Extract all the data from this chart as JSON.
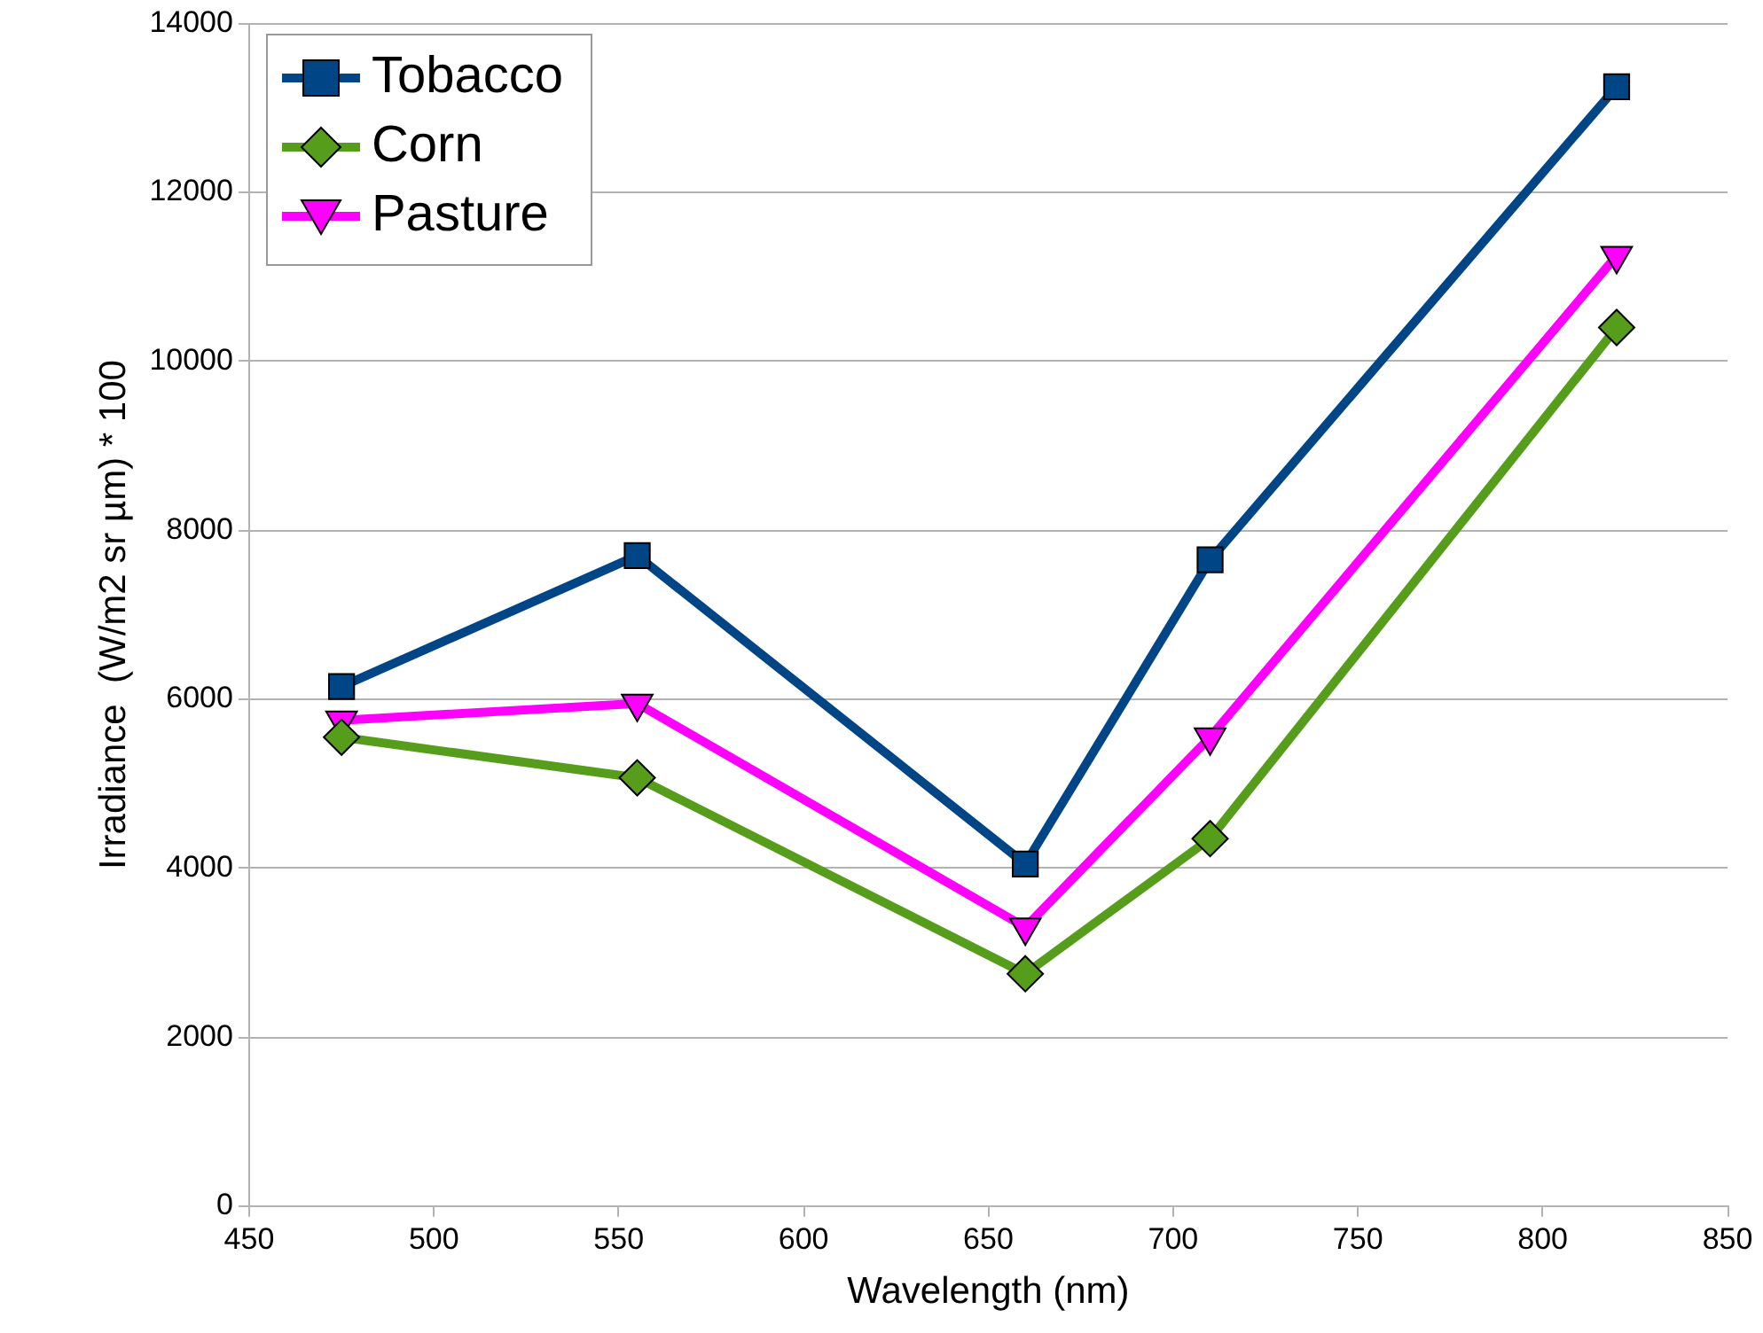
{
  "chart_data": {
    "type": "line",
    "xlabel": "Wavelength (nm)",
    "ylabel": "Irradiance  (W/m2 sr µm) * 100",
    "x": [
      475,
      555,
      660,
      710,
      820
    ],
    "series": [
      {
        "name": "Tobacco",
        "color": "#004586",
        "marker": "square",
        "values": [
          6150,
          7700,
          4050,
          7650,
          13250
        ]
      },
      {
        "name": "Corn",
        "color": "#579d1c",
        "marker": "diamond",
        "values": [
          5550,
          5070,
          2750,
          4350,
          10400
        ]
      },
      {
        "name": "Pasture",
        "color": "#ff00ff",
        "marker": "triangle-down",
        "values": [
          5750,
          5950,
          3300,
          5550,
          11250
        ]
      }
    ],
    "xlim": [
      450,
      850
    ],
    "xticks": [
      450,
      500,
      550,
      600,
      650,
      700,
      750,
      800,
      850
    ],
    "ylim": [
      0,
      14000
    ],
    "yticks": [
      0,
      2000,
      4000,
      6000,
      8000,
      10000,
      12000,
      14000
    ],
    "grid": "y",
    "legend": "top left",
    "line_style": "solid"
  }
}
